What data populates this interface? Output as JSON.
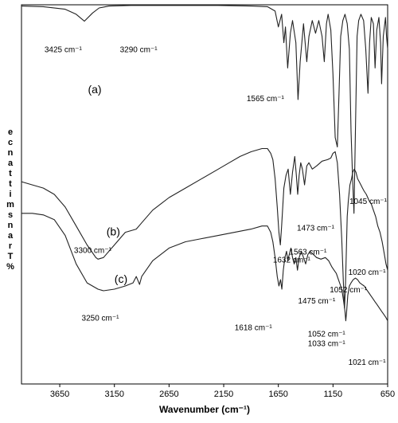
{
  "chart_data": {
    "type": "line",
    "xlabel": "Wavenumber (cm⁻¹)",
    "ylabel": "% Transmittance",
    "xlim": [
      4000,
      650
    ],
    "x_ticks": [
      {
        "value": 3650,
        "label": "3650"
      },
      {
        "value": 3150,
        "label": "3150"
      },
      {
        "value": 2650,
        "label": "2650"
      },
      {
        "value": 2150,
        "label": "2150"
      },
      {
        "value": 1650,
        "label": "1650"
      },
      {
        "value": 1150,
        "label": "1150"
      },
      {
        "value": 650,
        "label": "650"
      }
    ],
    "series": [
      {
        "label": "(a)",
        "points": [
          [
            4000,
            0.4
          ],
          [
            3800,
            0.6
          ],
          [
            3600,
            1.4
          ],
          [
            3500,
            3.0
          ],
          [
            3425,
            5.2
          ],
          [
            3350,
            2.6
          ],
          [
            3290,
            1.0
          ],
          [
            3200,
            0.4
          ],
          [
            3000,
            0.2
          ],
          [
            2600,
            0.2
          ],
          [
            2200,
            0.2
          ],
          [
            1900,
            0.4
          ],
          [
            1750,
            0.6
          ],
          [
            1680,
            2.0
          ],
          [
            1650,
            7.0
          ],
          [
            1620,
            3.0
          ],
          [
            1600,
            12.0
          ],
          [
            1585,
            7.0
          ],
          [
            1565,
            20.0
          ],
          [
            1540,
            9.0
          ],
          [
            1520,
            5.0
          ],
          [
            1490,
            12.0
          ],
          [
            1470,
            30.0
          ],
          [
            1450,
            18.0
          ],
          [
            1420,
            6.0
          ],
          [
            1390,
            18.0
          ],
          [
            1370,
            10.0
          ],
          [
            1340,
            5.0
          ],
          [
            1310,
            9.0
          ],
          [
            1280,
            5.0
          ],
          [
            1250,
            10.0
          ],
          [
            1230,
            18.0
          ],
          [
            1210,
            6.0
          ],
          [
            1195,
            3.0
          ],
          [
            1170,
            8.0
          ],
          [
            1150,
            22.0
          ],
          [
            1130,
            42.0
          ],
          [
            1110,
            45.0
          ],
          [
            1095,
            28.0
          ],
          [
            1080,
            10.0
          ],
          [
            1060,
            5.0
          ],
          [
            1040,
            3.0
          ],
          [
            1020,
            6.0
          ],
          [
            1000,
            14.0
          ],
          [
            985,
            40.0
          ],
          [
            970,
            56.0
          ],
          [
            958,
            66.0
          ],
          [
            945,
            40.0
          ],
          [
            930,
            10.0
          ],
          [
            915,
            5.0
          ],
          [
            895,
            3.0
          ],
          [
            870,
            5.0
          ],
          [
            850,
            14.0
          ],
          [
            830,
            28.0
          ],
          [
            815,
            12.0
          ],
          [
            800,
            4.0
          ],
          [
            780,
            6.0
          ],
          [
            765,
            20.0
          ],
          [
            750,
            8.0
          ],
          [
            730,
            4.0
          ],
          [
            715,
            12.0
          ],
          [
            705,
            25.0
          ],
          [
            690,
            10.0
          ],
          [
            670,
            4.0
          ],
          [
            660,
            10.0
          ],
          [
            650,
            14.0
          ]
        ]
      },
      {
        "label": "(b)",
        "points": [
          [
            4000,
            56.0
          ],
          [
            3900,
            57.0
          ],
          [
            3800,
            58.0
          ],
          [
            3700,
            60.0
          ],
          [
            3600,
            64.0
          ],
          [
            3500,
            70.0
          ],
          [
            3400,
            76.0
          ],
          [
            3320,
            80.0
          ],
          [
            3300,
            80.5
          ],
          [
            3250,
            80.0
          ],
          [
            3150,
            76.0
          ],
          [
            3050,
            72.0
          ],
          [
            2950,
            71.0
          ],
          [
            2900,
            69.0
          ],
          [
            2800,
            65.0
          ],
          [
            2650,
            61.0
          ],
          [
            2500,
            58.0
          ],
          [
            2350,
            55.0
          ],
          [
            2200,
            52.0
          ],
          [
            2100,
            50.0
          ],
          [
            2000,
            48.0
          ],
          [
            1900,
            46.5
          ],
          [
            1800,
            45.5
          ],
          [
            1750,
            45.5
          ],
          [
            1720,
            47.0
          ],
          [
            1700,
            49.0
          ],
          [
            1680,
            55.0
          ],
          [
            1660,
            64.0
          ],
          [
            1645,
            72.0
          ],
          [
            1632,
            76.0
          ],
          [
            1620,
            70.0
          ],
          [
            1600,
            58.0
          ],
          [
            1580,
            54.0
          ],
          [
            1560,
            52.0
          ],
          [
            1540,
            60.0
          ],
          [
            1520,
            53.0
          ],
          [
            1500,
            48.0
          ],
          [
            1485,
            54.0
          ],
          [
            1473,
            60.0
          ],
          [
            1460,
            54.0
          ],
          [
            1445,
            50.0
          ],
          [
            1430,
            52.0
          ],
          [
            1410,
            57.0
          ],
          [
            1390,
            51.0
          ],
          [
            1370,
            50.0
          ],
          [
            1340,
            52.0
          ],
          [
            1300,
            51.0
          ],
          [
            1250,
            49.5
          ],
          [
            1200,
            49.0
          ],
          [
            1170,
            48.5
          ],
          [
            1150,
            47.0
          ],
          [
            1130,
            46.5
          ],
          [
            1110,
            50.0
          ],
          [
            1090,
            60.0
          ],
          [
            1070,
            74.0
          ],
          [
            1055,
            88.0
          ],
          [
            1045,
            96.0
          ],
          [
            1035,
            88.0
          ],
          [
            1020,
            67.0
          ],
          [
            1010,
            62.0
          ],
          [
            995,
            57.0
          ],
          [
            980,
            55.0
          ],
          [
            970,
            53.0
          ],
          [
            955,
            52.0
          ],
          [
            940,
            53.0
          ],
          [
            925,
            55.0
          ],
          [
            910,
            56.0
          ],
          [
            895,
            57.0
          ],
          [
            880,
            58.0
          ],
          [
            865,
            59.0
          ],
          [
            845,
            60.0
          ],
          [
            820,
            62.0
          ],
          [
            800,
            63.0
          ],
          [
            780,
            65.0
          ],
          [
            760,
            67.0
          ],
          [
            740,
            70.0
          ],
          [
            720,
            72.0
          ],
          [
            700,
            75.0
          ],
          [
            680,
            79.0
          ],
          [
            665,
            82.0
          ],
          [
            650,
            84.0
          ]
        ]
      },
      {
        "label": "(c)",
        "points": [
          [
            4000,
            66.0
          ],
          [
            3900,
            66.0
          ],
          [
            3800,
            66.5
          ],
          [
            3700,
            68.0
          ],
          [
            3600,
            73.0
          ],
          [
            3500,
            82.0
          ],
          [
            3400,
            88.0
          ],
          [
            3300,
            90.0
          ],
          [
            3250,
            90.5
          ],
          [
            3150,
            90.0
          ],
          [
            3050,
            89.0
          ],
          [
            2980,
            88.0
          ],
          [
            2950,
            86.0
          ],
          [
            2920,
            88.5
          ],
          [
            2900,
            86.0
          ],
          [
            2800,
            81.0
          ],
          [
            2650,
            77.0
          ],
          [
            2500,
            75.0
          ],
          [
            2350,
            74.0
          ],
          [
            2200,
            73.0
          ],
          [
            2050,
            72.0
          ],
          [
            1900,
            71.0
          ],
          [
            1800,
            70.0
          ],
          [
            1750,
            70.0
          ],
          [
            1720,
            72.0
          ],
          [
            1700,
            75.0
          ],
          [
            1680,
            80.0
          ],
          [
            1660,
            86.0
          ],
          [
            1645,
            89.0
          ],
          [
            1630,
            87.0
          ],
          [
            1618,
            90.0
          ],
          [
            1605,
            84.0
          ],
          [
            1590,
            80.0
          ],
          [
            1575,
            78.0
          ],
          [
            1563,
            81.0
          ],
          [
            1550,
            79.0
          ],
          [
            1535,
            77.0
          ],
          [
            1520,
            80.0
          ],
          [
            1505,
            82.0
          ],
          [
            1490,
            80.0
          ],
          [
            1475,
            84.0
          ],
          [
            1460,
            80.0
          ],
          [
            1440,
            78.0
          ],
          [
            1420,
            80.0
          ],
          [
            1400,
            82.0
          ],
          [
            1380,
            79.0
          ],
          [
            1360,
            78.0
          ],
          [
            1330,
            79.0
          ],
          [
            1300,
            80.0
          ],
          [
            1260,
            80.5
          ],
          [
            1220,
            80.0
          ],
          [
            1190,
            81.0
          ],
          [
            1160,
            83.0
          ],
          [
            1140,
            84.0
          ],
          [
            1120,
            85.0
          ],
          [
            1100,
            87.0
          ],
          [
            1080,
            89.0
          ],
          [
            1065,
            91.0
          ],
          [
            1052,
            94.0
          ],
          [
            1040,
            97.0
          ],
          [
            1033,
            100.0
          ],
          [
            1025,
            97.0
          ],
          [
            1015,
            92.0
          ],
          [
            1000,
            89.0
          ],
          [
            985,
            88.0
          ],
          [
            965,
            87.0
          ],
          [
            945,
            86.5
          ],
          [
            925,
            87.0
          ],
          [
            905,
            88.0
          ],
          [
            885,
            88.5
          ],
          [
            865,
            89.0
          ],
          [
            845,
            90.0
          ],
          [
            825,
            91.0
          ],
          [
            805,
            92.0
          ],
          [
            785,
            93.0
          ],
          [
            765,
            94.0
          ],
          [
            745,
            95.0
          ],
          [
            725,
            96.0
          ],
          [
            705,
            97.0
          ],
          [
            685,
            98.0
          ],
          [
            665,
            99.0
          ],
          [
            650,
            100.0
          ]
        ]
      }
    ],
    "annotations": [
      {
        "text": "(a)",
        "series": "(a)",
        "x": 3330,
        "y": 28.0,
        "bold": false
      },
      {
        "text": "3425 cm⁻¹",
        "series": "(a)",
        "x": 3790,
        "y": 15.0
      },
      {
        "text": "3290 cm⁻¹",
        "series": "(a)",
        "x": 3100,
        "y": 15.0
      },
      {
        "text": "1565 cm⁻¹",
        "series": "(a)",
        "x": 1940,
        "y": 30.5
      },
      {
        "text": "(b)",
        "series": "(b)",
        "x": 3160,
        "y": 73.0
      },
      {
        "text": "3300 cm⁻¹",
        "series": "(b)",
        "x": 3520,
        "y": 78.5
      },
      {
        "text": "1632 cm⁻¹",
        "series": "(b)",
        "x": 1700,
        "y": 81.5
      },
      {
        "text": "1473 cm⁻¹",
        "series": "(b)",
        "x": 1480,
        "y": 71.5
      },
      {
        "text": "1045 cm⁻¹",
        "series": "(b)",
        "x": 1000,
        "y": 63.0
      },
      {
        "text": "1020 cm⁻¹",
        "series": "(b)",
        "x": 1010,
        "y": 85.5
      },
      {
        "text": "1052 cm⁻¹",
        "series": "(b)",
        "x": 1180,
        "y": 91.0
      },
      {
        "text": "(c)",
        "series": "(c)",
        "x": 3090,
        "y": 88.0
      },
      {
        "text": "3250 cm⁻¹",
        "series": "(c)",
        "x": 3450,
        "y": 100.0
      },
      {
        "text": "1563 cm⁻¹",
        "series": "(c)",
        "x": 1550,
        "y": 79.0
      },
      {
        "text": "1475 cm⁻¹",
        "series": "(c)",
        "x": 1470,
        "y": 94.5
      },
      {
        "text": "1618 cm⁻¹",
        "series": "(c)",
        "x": 2050,
        "y": 103.0
      },
      {
        "text": "1052 cm⁻¹",
        "series": "(c)",
        "x": 1380,
        "y": 105.0
      },
      {
        "text": "1033 cm⁻¹",
        "series": "(c)",
        "x": 1380,
        "y": 108.0
      },
      {
        "text": "1021 cm⁻¹",
        "series": "(c)",
        "x": 1010,
        "y": 114.0
      }
    ],
    "grid": false,
    "legend": false
  }
}
